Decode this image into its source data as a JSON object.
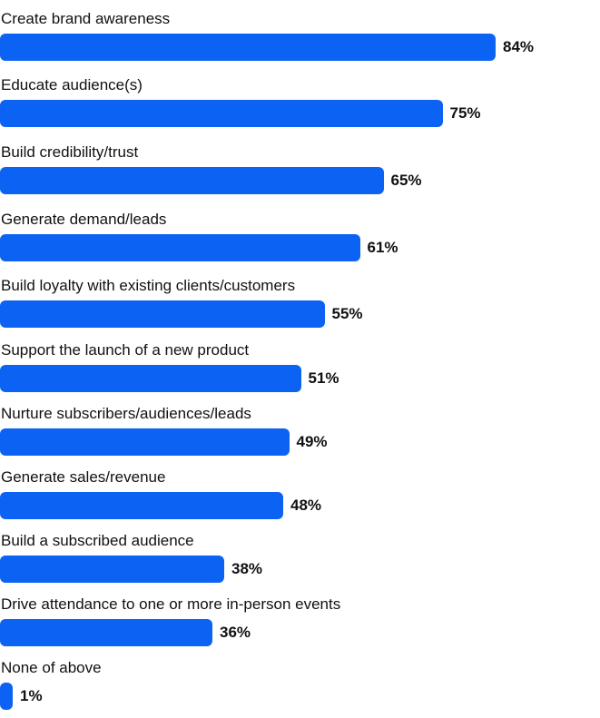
{
  "chart_data": {
    "type": "bar",
    "orientation": "horizontal",
    "categories": [
      "Create brand awareness",
      "Educate audience(s)",
      "Build credibility/trust",
      "Generate demand/leads",
      "Build loyalty with existing clients/customers",
      "Support the launch of a new product",
      "Nurture subscribers/audiences/leads",
      "Generate sales/revenue",
      "Build a subscribed audience",
      "Drive attendance to one or more in-person events",
      "None of above"
    ],
    "values": [
      84,
      75,
      65,
      61,
      55,
      51,
      49,
      48,
      38,
      36,
      1
    ],
    "value_labels": [
      "84%",
      "75%",
      "65%",
      "61%",
      "55%",
      "51%",
      "49%",
      "48%",
      "38%",
      "36%",
      "1%"
    ],
    "unit": "%",
    "bar_color": "#0c63f3",
    "grid": false,
    "title": "",
    "xlabel": "",
    "ylabel": ""
  }
}
